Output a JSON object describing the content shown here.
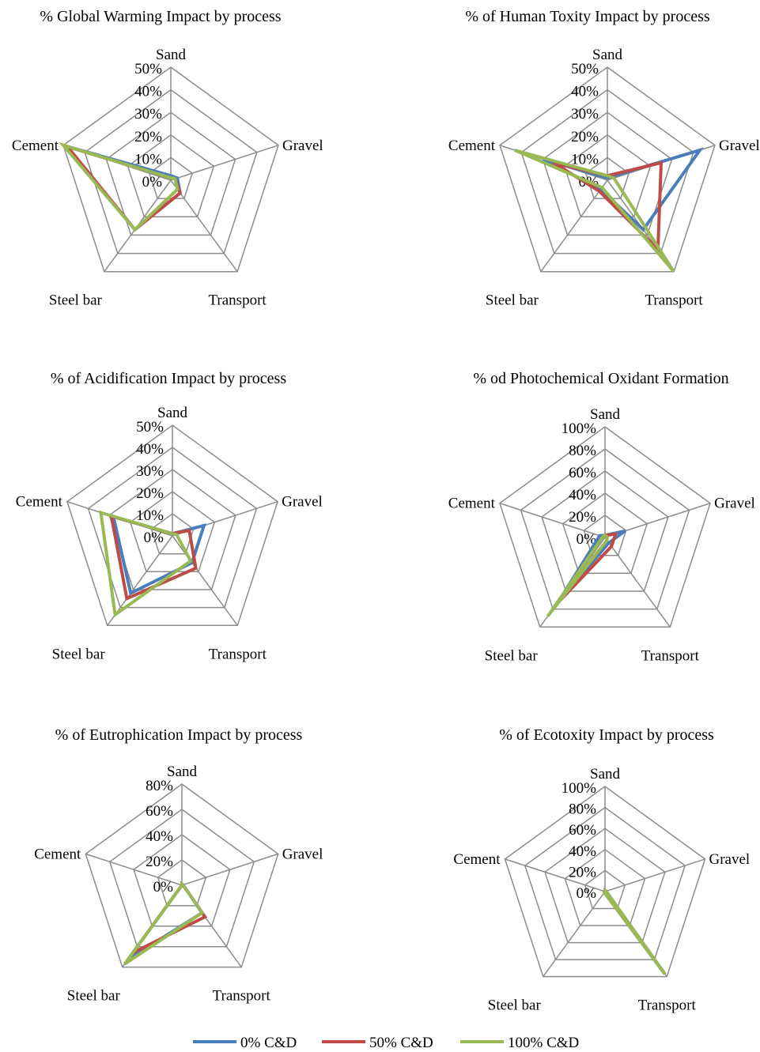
{
  "legend": {
    "items": [
      {
        "name": "0% C&D",
        "color": "#4a7ebb"
      },
      {
        "name": "50% C&D",
        "color": "#be4b48"
      },
      {
        "name": "100% C&D",
        "color": "#98b954"
      }
    ]
  },
  "chart_data": [
    {
      "type": "radar",
      "title": "% Global Warming Impact by process",
      "categories": [
        "Sand",
        "Gravel",
        "Transport",
        "Steel bar",
        "Cement"
      ],
      "ticks": [
        "0%",
        "10%",
        "20%",
        "30%",
        "40%",
        "50%"
      ],
      "rmax": 50,
      "series": [
        {
          "name": "0% C&D",
          "values": [
            2,
            3,
            7,
            27,
            49
          ]
        },
        {
          "name": "50% C&D",
          "values": [
            1,
            2,
            7,
            27,
            48
          ]
        },
        {
          "name": "100% C&D",
          "values": [
            1,
            2,
            5,
            27,
            50
          ]
        }
      ]
    },
    {
      "type": "radar",
      "title": "% of Human Toxity Impact by process",
      "categories": [
        "Sand",
        "Gravel",
        "Transport",
        "Steel bar",
        "Cement"
      ],
      "ticks": [
        "0%",
        "10%",
        "20%",
        "30%",
        "40%",
        "50%"
      ],
      "rmax": 50,
      "series": [
        {
          "name": "0% C&D",
          "values": [
            1,
            43,
            27,
            5,
            30
          ]
        },
        {
          "name": "50% C&D",
          "values": [
            2,
            25,
            38,
            6,
            25
          ]
        },
        {
          "name": "100% C&D",
          "values": [
            2,
            3,
            50,
            4,
            43
          ]
        }
      ]
    },
    {
      "type": "radar",
      "title": "% of Acidification Impact  by process",
      "categories": [
        "Sand",
        "Gravel",
        "Transport",
        "Steel bar",
        "Cement"
      ],
      "ticks": [
        "0%",
        "10%",
        "20%",
        "30%",
        "40%",
        "50%"
      ],
      "rmax": 50,
      "series": [
        {
          "name": "0% C&D",
          "values": [
            1,
            15,
            15,
            32,
            28
          ]
        },
        {
          "name": "50% C&D",
          "values": [
            1,
            8,
            18,
            35,
            29
          ]
        },
        {
          "name": "100% C&D",
          "values": [
            1,
            2,
            14,
            44,
            34
          ]
        }
      ]
    },
    {
      "type": "radar",
      "title": "% od Photochemical Oxidant Formation",
      "categories": [
        "Sand",
        "Gravel",
        "Transport",
        "Steel bar",
        "Cement"
      ],
      "ticks": [
        "0%",
        "20%",
        "40%",
        "60%",
        "80%",
        "100%"
      ],
      "rmax": 100,
      "series": [
        {
          "name": "0% C&D",
          "values": [
            2,
            19,
            6,
            70,
            5
          ]
        },
        {
          "name": "50% C&D",
          "values": [
            2,
            10,
            10,
            75,
            2
          ]
        },
        {
          "name": "100% C&D",
          "values": [
            2,
            2,
            3,
            88,
            2
          ]
        }
      ]
    },
    {
      "type": "radar",
      "title": "% of Eutrophication Impact  by process",
      "categories": [
        "Sand",
        "Gravel",
        "Transport",
        "Steel bar",
        "Cement"
      ],
      "ticks": [
        "0%",
        "20%",
        "40%",
        "60%",
        "80%"
      ],
      "rmax": 80,
      "series": [
        {
          "name": "0% C&D",
          "values": [
            1,
            1,
            27,
            73,
            0
          ]
        },
        {
          "name": "50% C&D",
          "values": [
            1,
            1,
            31,
            66,
            0
          ]
        },
        {
          "name": "100% C&D",
          "values": [
            1,
            1,
            27,
            77,
            0
          ]
        }
      ]
    },
    {
      "type": "radar",
      "title": "% of Ecotoxity Impact by process",
      "categories": [
        "Sand",
        "Gravel",
        "Transport",
        "Steel bar",
        "Cement"
      ],
      "ticks": [
        "0%",
        "20%",
        "40%",
        "60%",
        "80%",
        "100%"
      ],
      "rmax": 100,
      "series": [
        {
          "name": "0% C&D",
          "values": [
            1,
            1,
            97,
            1,
            0
          ]
        },
        {
          "name": "50% C&D",
          "values": [
            1,
            1,
            97,
            1,
            0
          ]
        },
        {
          "name": "100% C&D",
          "values": [
            1,
            1,
            97,
            1,
            0
          ]
        }
      ]
    }
  ]
}
